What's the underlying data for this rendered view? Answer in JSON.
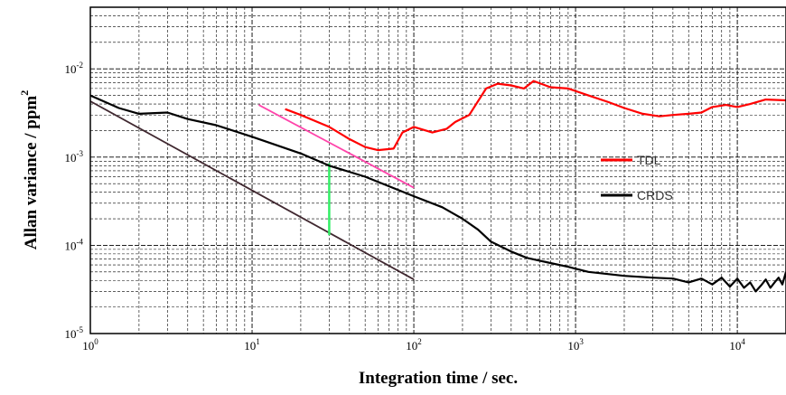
{
  "chart_data": {
    "type": "line",
    "title": "",
    "xlabel": "Integration time / sec.",
    "ylabel": "Allan variance / ppm",
    "ylabel_superscript": "2",
    "x_scale": "log",
    "y_scale": "log",
    "xlim": [
      1,
      20000
    ],
    "ylim": [
      1e-05,
      0.05
    ],
    "grid": true,
    "legend_position": "right",
    "x_ticks": [
      {
        "base": "10",
        "exp": "0",
        "value": 1
      },
      {
        "base": "10",
        "exp": "1",
        "value": 10
      },
      {
        "base": "10",
        "exp": "2",
        "value": 100
      },
      {
        "base": "10",
        "exp": "3",
        "value": 1000
      },
      {
        "base": "10",
        "exp": "4",
        "value": 10000
      }
    ],
    "y_ticks": [
      {
        "base": "10",
        "exp": "-5",
        "value": 1e-05
      },
      {
        "base": "10",
        "exp": "-4",
        "value": 0.0001
      },
      {
        "base": "10",
        "exp": "-3",
        "value": 0.001
      },
      {
        "base": "10",
        "exp": "-2",
        "value": 0.01
      }
    ],
    "series": [
      {
        "name": "TDL",
        "color": "#ff0000",
        "points": [
          [
            16,
            0.0035
          ],
          [
            20,
            0.003
          ],
          [
            30,
            0.0022
          ],
          [
            40,
            0.0016
          ],
          [
            50,
            0.0013
          ],
          [
            60,
            0.0012
          ],
          [
            75,
            0.00125
          ],
          [
            85,
            0.0019
          ],
          [
            100,
            0.0022
          ],
          [
            130,
            0.0019
          ],
          [
            160,
            0.0021
          ],
          [
            180,
            0.0025
          ],
          [
            220,
            0.003
          ],
          [
            280,
            0.006
          ],
          [
            330,
            0.0068
          ],
          [
            400,
            0.0065
          ],
          [
            480,
            0.006
          ],
          [
            550,
            0.0073
          ],
          [
            700,
            0.0062
          ],
          [
            900,
            0.006
          ],
          [
            1200,
            0.005
          ],
          [
            1600,
            0.0042
          ],
          [
            2000,
            0.0036
          ],
          [
            2600,
            0.0031
          ],
          [
            3300,
            0.0029
          ],
          [
            4000,
            0.003
          ],
          [
            5000,
            0.0031
          ],
          [
            6000,
            0.0032
          ],
          [
            7000,
            0.0037
          ],
          [
            8500,
            0.0039
          ],
          [
            10000,
            0.0037
          ],
          [
            12000,
            0.004
          ],
          [
            15000,
            0.0045
          ],
          [
            20000,
            0.0044
          ]
        ]
      },
      {
        "name": "CRDS",
        "color": "#000000",
        "points": [
          [
            1,
            0.005
          ],
          [
            1.5,
            0.0036
          ],
          [
            2,
            0.0031
          ],
          [
            3,
            0.0032
          ],
          [
            4,
            0.0027
          ],
          [
            6,
            0.0023
          ],
          [
            10,
            0.0017
          ],
          [
            20,
            0.0011
          ],
          [
            30,
            0.0008
          ],
          [
            50,
            0.0006
          ],
          [
            100,
            0.00036
          ],
          [
            150,
            0.00027
          ],
          [
            200,
            0.0002
          ],
          [
            250,
            0.00015
          ],
          [
            300,
            0.00011
          ],
          [
            400,
            8.5e-05
          ],
          [
            500,
            7.2e-05
          ],
          [
            700,
            6.3e-05
          ],
          [
            900,
            5.7e-05
          ],
          [
            1200,
            5e-05
          ],
          [
            2000,
            4.5e-05
          ],
          [
            3000,
            4.3e-05
          ],
          [
            4000,
            4.2e-05
          ],
          [
            5000,
            3.8e-05
          ],
          [
            6000,
            4.2e-05
          ],
          [
            7000,
            3.6e-05
          ],
          [
            8000,
            4.3e-05
          ],
          [
            9000,
            3.4e-05
          ],
          [
            10000,
            4.2e-05
          ],
          [
            11000,
            3.3e-05
          ],
          [
            12000,
            3.8e-05
          ],
          [
            13000,
            3e-05
          ],
          [
            14000,
            3.5e-05
          ],
          [
            15000,
            4.1e-05
          ],
          [
            16000,
            3.3e-05
          ],
          [
            17000,
            3.8e-05
          ],
          [
            18000,
            4.3e-05
          ],
          [
            19000,
            3.6e-05
          ],
          [
            20000,
            5e-05
          ]
        ]
      }
    ],
    "reference_lines": [
      {
        "color": "#402830",
        "points": [
          [
            1,
            0.0043
          ],
          [
            100,
            4.1e-05
          ]
        ]
      },
      {
        "color": "#ff44aa",
        "points": [
          [
            11,
            0.0039
          ],
          [
            100,
            0.00045
          ]
        ]
      },
      {
        "color": "#33ee66",
        "points": [
          [
            30,
            0.00085
          ],
          [
            30,
            0.00013
          ]
        ]
      }
    ]
  }
}
